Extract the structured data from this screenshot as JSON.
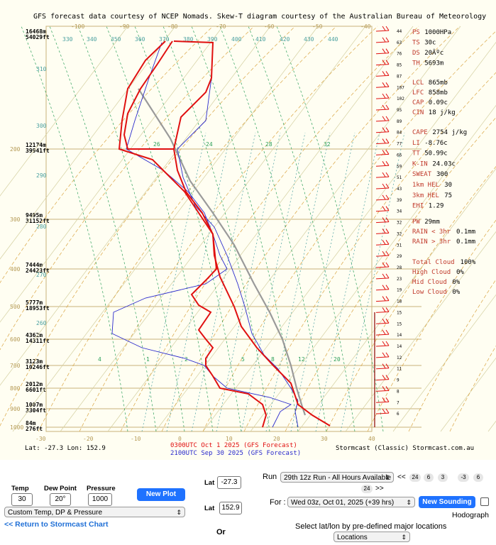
{
  "chart_header": "GFS forecast data courtesy of NCEP Nomads.  Skew-T diagram courtesy of the Australian Bureau of Meteorology",
  "temp_axis_top": [
    "-100",
    "-90",
    "-80",
    "-70",
    "-60",
    "-50",
    "-40"
  ],
  "temp_axis_bottom": [
    "-30",
    "-20",
    "-10",
    "0",
    "10",
    "20",
    "30",
    "40"
  ],
  "theta_labels": [
    "330",
    "340",
    "350",
    "360",
    "370",
    "380",
    "390",
    "400",
    "410",
    "420",
    "430",
    "440"
  ],
  "mixing_labels": [
    "26",
    "24",
    "28",
    "32"
  ],
  "side_theta_labels": [
    "310",
    "300",
    "290",
    "280",
    "270",
    "260"
  ],
  "lower_mix_labels": [
    "4",
    "1",
    "2",
    "5",
    "8",
    "12",
    "20"
  ],
  "pressure_levels": [
    {
      "p": "200",
      "alt_m": "12174m",
      "alt_ft": "39941ft"
    },
    {
      "p": "300",
      "alt_m": "9495m",
      "alt_ft": "31152ft"
    },
    {
      "p": "400",
      "alt_m": "7444m",
      "alt_ft": "24423ft"
    },
    {
      "p": "500",
      "alt_m": "5777m",
      "alt_ft": "18953ft"
    },
    {
      "p": "600",
      "alt_m": "4362m",
      "alt_ft": "14311ft"
    },
    {
      "p": "700",
      "alt_m": "3123m",
      "alt_ft": "10246ft"
    },
    {
      "p": "800",
      "alt_m": "2012m",
      "alt_ft": "6601ft"
    },
    {
      "p": "900",
      "alt_m": "1007m",
      "alt_ft": "3304ft"
    },
    {
      "p": "1000",
      "alt_m": "84m",
      "alt_ft": "276ft"
    }
  ],
  "top_level": {
    "alt_m": "16468m",
    "alt_ft": "54029ft"
  },
  "wind_speeds": [
    "44",
    "63",
    "76",
    "85",
    "87",
    "107",
    "102",
    "95",
    "89",
    "84",
    "77",
    "66",
    "59",
    "51",
    "43",
    "39",
    "34",
    "32",
    "32",
    "31",
    "29",
    "28",
    "23",
    "19",
    "18",
    "15",
    "15",
    "14",
    "14",
    "12",
    "11",
    "9",
    "8",
    "7",
    "6"
  ],
  "stats_top": [
    {
      "key": "PS",
      "val": "1000HPa"
    },
    {
      "key": "TS",
      "val": "30c"
    },
    {
      "key": "DS",
      "val": "20Âºc"
    },
    {
      "key": "TH",
      "val": "5693m"
    }
  ],
  "stats_mid": [
    {
      "key": "LCL",
      "val": "865mb"
    },
    {
      "key": "LFC",
      "val": "858mb"
    },
    {
      "key": "CAP",
      "val": "0.09c"
    },
    {
      "key": "CIN",
      "val": "18 j/kg"
    }
  ],
  "stats_instab": [
    {
      "key": "CAPE",
      "val": "2754 j/kg"
    },
    {
      "key": "LI",
      "val": "-8.76c"
    },
    {
      "key": "TT",
      "val": "50.99c"
    },
    {
      "key": "K-IN",
      "val": "24.03c"
    },
    {
      "key": "SWEAT",
      "val": "300"
    },
    {
      "key": "1km HEL",
      "val": "30"
    },
    {
      "key": "3km HEL",
      "val": "75"
    },
    {
      "key": "EHI",
      "val": "1.29"
    }
  ],
  "stats_rain": [
    {
      "key": "PW",
      "val": "29mm"
    },
    {
      "key": "RAIN < 3hr",
      "val": "0.1mm"
    },
    {
      "key": "RAIN > 3hr",
      "val": "0.1mm"
    }
  ],
  "stats_cloud": [
    {
      "key": "Total Cloud",
      "val": "100%"
    },
    {
      "key": "High Cloud",
      "val": "0%"
    },
    {
      "key": "Mid Cloud",
      "val": "0%"
    },
    {
      "key": "Low Cloud",
      "val": "0%"
    }
  ],
  "footer": {
    "latlon": "Lat: -27.3  Lon: 152.9",
    "line1": "0300UTC Oct 1 2025 (GFS Forecast)",
    "line2": "2100UTC Sep 30 2025 (GFS Forecast)",
    "brand": "Stormcast (Classic) Stormcast.com.au"
  },
  "colors": {
    "primary_trace": "#e01010",
    "secondary_trace": "#2a2acc",
    "parcel": "#9a9a9a",
    "dry_adiabat": "#d9a441",
    "moist_adiabat": "#2da05a",
    "mixing_ratio": "#4aa0a0",
    "isobar": "#c9b37a",
    "button": "#1f72ff"
  },
  "controls": {
    "temp_label": "Temp",
    "temp_value": "30",
    "dp_label": "Dew Point",
    "dp_value": "20°",
    "pressure_label": "Pressure",
    "pressure_value": "1000",
    "new_plot": "New Plot",
    "preset_select": "Custom Temp, DP & Pressure",
    "return_link": "<< Return to Stormcast Chart",
    "lat_label": "Lat",
    "lat_value_1": "-27.3",
    "lat_value_2": "152.9",
    "or_label": "Or",
    "run_label": "Run",
    "run_select": "29th 12z Run - All Hours Available",
    "nav_prev": "<<",
    "nav_next": ">>",
    "step_buttons": [
      "24",
      "6",
      "3",
      "-3",
      "6",
      "24"
    ],
    "for_label": "For :",
    "for_select": "Wed 03z, Oct 01, 2025 (+39 hrs)",
    "new_sounding": "New Sounding",
    "hodograph": "Hodograph",
    "locations_hint": "Select lat/lon by pre-defined major locations",
    "locations_select": "Locations"
  }
}
